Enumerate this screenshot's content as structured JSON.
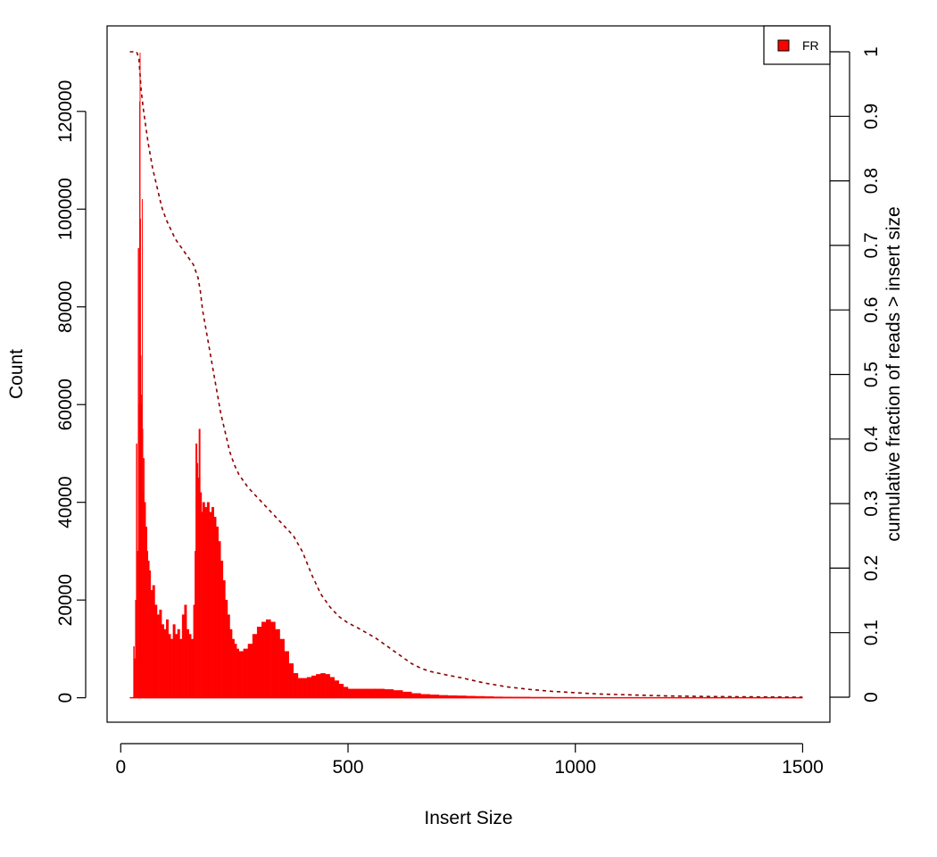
{
  "chart_data": {
    "type": "bar",
    "xlabel": "Insert Size",
    "ylabel": "Count",
    "y2label": "cumulative fraction of reads > insert size",
    "xlim": [
      -30,
      1560
    ],
    "ylim": [
      -5000,
      137500
    ],
    "y2lim": [
      0,
      1
    ],
    "x_ticks": [
      "0",
      "500",
      "1000",
      "1500"
    ],
    "y_ticks": [
      "0",
      "20000",
      "40000",
      "60000",
      "80000",
      "100000",
      "120000"
    ],
    "y2_ticks": [
      "0",
      "0.1",
      "0.2",
      "0.3",
      "0.4",
      "0.5",
      "0.6",
      "0.7",
      "0.8",
      "0.9",
      "1"
    ],
    "legend": {
      "position": "top-right",
      "entries": [
        {
          "label": "FR",
          "color": "#ff0000"
        }
      ]
    },
    "series": [
      {
        "name": "FR",
        "color": "#ff0000",
        "kind": "histogram",
        "x": [
          20,
          25,
          28,
          30,
          32,
          34,
          36,
          38,
          40,
          41,
          42,
          43,
          44,
          45,
          46,
          47,
          48,
          49,
          50,
          52,
          55,
          58,
          60,
          63,
          66,
          70,
          75,
          80,
          85,
          90,
          95,
          100,
          105,
          110,
          115,
          120,
          125,
          130,
          135,
          140,
          145,
          150,
          155,
          160,
          163,
          165,
          168,
          170,
          172,
          175,
          178,
          180,
          185,
          190,
          195,
          200,
          205,
          210,
          215,
          220,
          225,
          230,
          235,
          240,
          245,
          250,
          255,
          260,
          265,
          270,
          280,
          290,
          300,
          310,
          320,
          330,
          340,
          350,
          360,
          370,
          380,
          390,
          400,
          410,
          420,
          430,
          440,
          450,
          460,
          470,
          480,
          490,
          500,
          520,
          540,
          560,
          580,
          600,
          620,
          640,
          660,
          680,
          700,
          720,
          740,
          760,
          780,
          800,
          820,
          840,
          860,
          880,
          900,
          950,
          1000,
          1050,
          1100,
          1150,
          1200,
          1250,
          1300,
          1350,
          1400,
          1450,
          1500
        ],
        "values": [
          0,
          0,
          10500,
          8000,
          20000,
          52000,
          30000,
          92000,
          60000,
          122000,
          132000,
          98000,
          70000,
          60000,
          62000,
          102000,
          55000,
          42000,
          49000,
          40000,
          35000,
          30000,
          28000,
          26000,
          22000,
          23000,
          19000,
          17000,
          18000,
          15000,
          14000,
          16000,
          13000,
          12000,
          15000,
          13000,
          14000,
          12000,
          17000,
          19000,
          14000,
          13000,
          12000,
          19000,
          30000,
          52000,
          48000,
          45000,
          55000,
          42000,
          38000,
          40000,
          39000,
          40000,
          38000,
          39000,
          37000,
          35000,
          32000,
          28000,
          24000,
          20000,
          17000,
          14000,
          12000,
          11000,
          10000,
          9500,
          9500,
          10000,
          11000,
          13000,
          14500,
          15500,
          16000,
          15500,
          14000,
          12000,
          9500,
          7000,
          5000,
          4000,
          4000,
          4200,
          4500,
          4800,
          5000,
          4800,
          4200,
          3500,
          2800,
          2200,
          1800,
          1800,
          1800,
          1800,
          1700,
          1500,
          1200,
          900,
          700,
          600,
          500,
          450,
          400,
          350,
          300,
          250,
          200,
          180,
          160,
          150,
          120,
          100,
          80,
          60,
          40,
          30,
          20,
          10,
          5,
          0,
          0,
          0,
          0
        ]
      },
      {
        "name": "cumulative",
        "color": "#8b0000",
        "kind": "dashed-line",
        "axis": "right",
        "x": [
          20,
          25,
          30,
          35,
          40,
          45,
          50,
          60,
          70,
          80,
          90,
          100,
          110,
          120,
          130,
          140,
          150,
          160,
          165,
          170,
          175,
          180,
          190,
          200,
          210,
          220,
          230,
          240,
          250,
          260,
          280,
          300,
          320,
          340,
          360,
          380,
          400,
          420,
          440,
          460,
          480,
          500,
          520,
          540,
          560,
          580,
          600,
          620,
          640,
          660,
          680,
          700,
          720,
          750,
          800,
          850,
          900,
          950,
          1000,
          1050,
          1100,
          1150,
          1200,
          1300,
          1400,
          1500
        ],
        "values": [
          1.0,
          1.0,
          1.0,
          1.0,
          0.99,
          0.94,
          0.91,
          0.86,
          0.82,
          0.79,
          0.76,
          0.74,
          0.725,
          0.71,
          0.7,
          0.69,
          0.68,
          0.67,
          0.66,
          0.65,
          0.63,
          0.6,
          0.56,
          0.52,
          0.48,
          0.44,
          0.41,
          0.38,
          0.36,
          0.345,
          0.325,
          0.31,
          0.295,
          0.28,
          0.265,
          0.25,
          0.225,
          0.19,
          0.16,
          0.14,
          0.125,
          0.115,
          0.108,
          0.1,
          0.092,
          0.082,
          0.072,
          0.062,
          0.052,
          0.045,
          0.04,
          0.037,
          0.034,
          0.03,
          0.022,
          0.016,
          0.012,
          0.009,
          0.007,
          0.005,
          0.004,
          0.003,
          0.002,
          0.001,
          0.0005,
          0.0
        ]
      }
    ]
  }
}
